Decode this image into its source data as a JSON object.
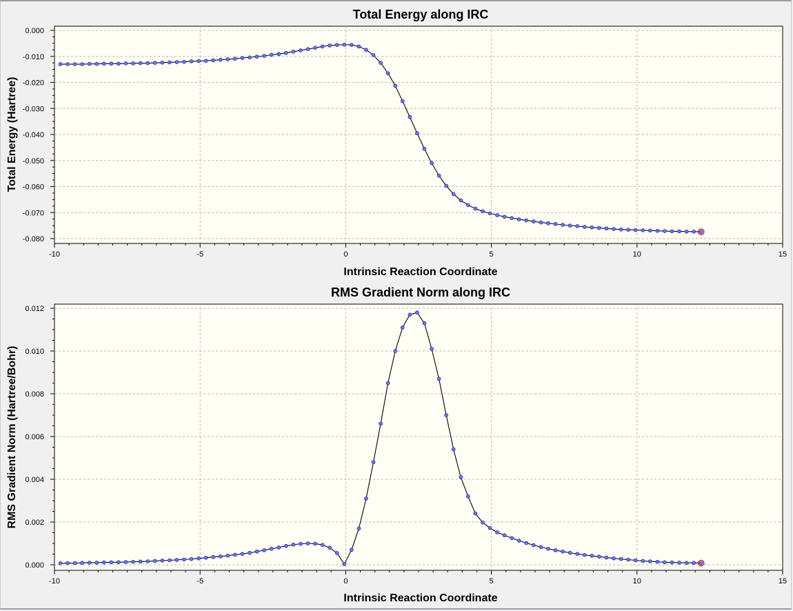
{
  "chart_data": [
    {
      "type": "line",
      "title": "Total Energy along IRC",
      "xlabel": "Intrinsic Reaction Coordinate",
      "ylabel": "Total Energy (Hartree)",
      "xlim": [
        -10,
        15
      ],
      "ylim": [
        -0.08,
        0.0
      ],
      "grid": true,
      "x_ticks": [
        "-10",
        "-5",
        "0",
        "5",
        "10",
        "15"
      ],
      "y_ticks": [
        "0.000",
        "-0.010",
        "-0.020",
        "-0.030",
        "-0.040",
        "-0.050",
        "-0.060",
        "-0.070",
        "-0.080"
      ],
      "x_tick_values": [
        -10,
        -5,
        0,
        5,
        10,
        15
      ],
      "y_tick_values": [
        0.0,
        -0.01,
        -0.02,
        -0.03,
        -0.04,
        -0.05,
        -0.06,
        -0.07,
        -0.08
      ],
      "highlight_last_point": true,
      "series": [
        {
          "x": [
            -9.8,
            -9.55,
            -9.3,
            -9.05,
            -8.8,
            -8.55,
            -8.3,
            -8.05,
            -7.8,
            -7.55,
            -7.3,
            -7.05,
            -6.8,
            -6.55,
            -6.3,
            -6.05,
            -5.8,
            -5.55,
            -5.3,
            -5.05,
            -4.8,
            -4.55,
            -4.3,
            -4.05,
            -3.8,
            -3.55,
            -3.3,
            -3.05,
            -2.8,
            -2.55,
            -2.3,
            -2.05,
            -1.8,
            -1.55,
            -1.3,
            -1.05,
            -0.8,
            -0.55,
            -0.3,
            -0.05,
            0.2,
            0.45,
            0.7,
            0.95,
            1.2,
            1.45,
            1.7,
            1.95,
            2.2,
            2.45,
            2.7,
            2.95,
            3.2,
            3.45,
            3.7,
            3.95,
            4.2,
            4.45,
            4.7,
            4.95,
            5.2,
            5.45,
            5.7,
            5.95,
            6.2,
            6.45,
            6.7,
            6.95,
            7.2,
            7.45,
            7.7,
            7.95,
            8.2,
            8.45,
            8.7,
            8.95,
            9.2,
            9.45,
            9.7,
            9.95,
            10.2,
            10.45,
            10.7,
            10.95,
            11.2,
            11.45,
            11.7,
            11.95,
            12.2
          ],
          "y": [
            -0.013,
            -0.013,
            -0.013,
            -0.013,
            -0.0129,
            -0.0129,
            -0.0128,
            -0.0128,
            -0.0128,
            -0.0127,
            -0.0127,
            -0.0126,
            -0.0126,
            -0.0125,
            -0.0124,
            -0.0123,
            -0.0122,
            -0.0121,
            -0.0119,
            -0.0118,
            -0.0117,
            -0.0115,
            -0.0113,
            -0.0111,
            -0.0109,
            -0.0106,
            -0.0104,
            -0.0101,
            -0.0098,
            -0.0094,
            -0.0091,
            -0.0087,
            -0.0082,
            -0.0077,
            -0.0072,
            -0.0067,
            -0.0062,
            -0.0058,
            -0.0056,
            -0.0055,
            -0.0056,
            -0.0062,
            -0.0075,
            -0.0095,
            -0.0125,
            -0.0165,
            -0.0213,
            -0.0272,
            -0.0333,
            -0.0395,
            -0.0455,
            -0.051,
            -0.0558,
            -0.0597,
            -0.0629,
            -0.0653,
            -0.0671,
            -0.0685,
            -0.0695,
            -0.0703,
            -0.071,
            -0.0716,
            -0.0721,
            -0.0726,
            -0.073,
            -0.0734,
            -0.0738,
            -0.0741,
            -0.0744,
            -0.0747,
            -0.075,
            -0.0752,
            -0.0755,
            -0.0757,
            -0.0759,
            -0.0761,
            -0.0763,
            -0.0765,
            -0.0766,
            -0.0767,
            -0.0768,
            -0.0769,
            -0.077,
            -0.0771,
            -0.0772,
            -0.0772,
            -0.0773,
            -0.0773,
            -0.0774
          ]
        }
      ]
    },
    {
      "type": "line",
      "title": "RMS Gradient Norm along IRC",
      "xlabel": "Intrinsic Reaction Coordinate",
      "ylabel": "RMS Gradient Norm (Hartree/Bohr)",
      "xlim": [
        -10,
        15
      ],
      "ylim": [
        0.0,
        0.012
      ],
      "grid": true,
      "x_ticks": [
        "-10",
        "-5",
        "0",
        "5",
        "10",
        "15"
      ],
      "y_ticks": [
        "0.012",
        "0.010",
        "0.008",
        "0.006",
        "0.004",
        "0.002",
        "0.000"
      ],
      "x_tick_values": [
        -10,
        -5,
        0,
        5,
        10,
        15
      ],
      "y_tick_values": [
        0.012,
        0.01,
        0.008,
        0.006,
        0.004,
        0.002,
        0.0
      ],
      "highlight_last_point": true,
      "series": [
        {
          "x": [
            -9.8,
            -9.55,
            -9.3,
            -9.05,
            -8.8,
            -8.55,
            -8.3,
            -8.05,
            -7.8,
            -7.55,
            -7.3,
            -7.05,
            -6.8,
            -6.55,
            -6.3,
            -6.05,
            -5.8,
            -5.55,
            -5.3,
            -5.05,
            -4.8,
            -4.55,
            -4.3,
            -4.05,
            -3.8,
            -3.55,
            -3.3,
            -3.05,
            -2.8,
            -2.55,
            -2.3,
            -2.05,
            -1.8,
            -1.55,
            -1.3,
            -1.05,
            -0.8,
            -0.55,
            -0.3,
            -0.05,
            0.2,
            0.45,
            0.7,
            0.95,
            1.2,
            1.45,
            1.7,
            1.95,
            2.2,
            2.45,
            2.7,
            2.95,
            3.2,
            3.45,
            3.7,
            3.95,
            4.2,
            4.45,
            4.7,
            4.95,
            5.2,
            5.45,
            5.7,
            5.95,
            6.2,
            6.45,
            6.7,
            6.95,
            7.2,
            7.45,
            7.7,
            7.95,
            8.2,
            8.45,
            8.7,
            8.95,
            9.2,
            9.45,
            9.7,
            9.95,
            10.2,
            10.45,
            10.7,
            10.95,
            11.2,
            11.45,
            11.7,
            11.95,
            12.2
          ],
          "y": [
            7e-05,
            8e-05,
            8e-05,
            9e-05,
            0.0001,
            0.0001,
            0.00011,
            0.00012,
            0.00012,
            0.00013,
            0.00014,
            0.00015,
            0.00016,
            0.00018,
            0.0002,
            0.00021,
            0.00023,
            0.00025,
            0.00027,
            0.0003,
            0.00033,
            0.00036,
            0.00039,
            0.00043,
            0.00047,
            0.00051,
            0.00056,
            0.00062,
            0.00068,
            0.00075,
            0.00081,
            0.00088,
            0.00094,
            0.00098,
            0.001,
            0.00099,
            0.00093,
            0.0008,
            0.00055,
            3e-05,
            0.0007,
            0.0017,
            0.0031,
            0.0048,
            0.0066,
            0.0085,
            0.01,
            0.0111,
            0.0117,
            0.0118,
            0.0113,
            0.0101,
            0.0087,
            0.007,
            0.0054,
            0.0041,
            0.0032,
            0.0024,
            0.00198,
            0.00172,
            0.00152,
            0.00138,
            0.00125,
            0.00113,
            0.00102,
            0.00092,
            0.00083,
            0.00075,
            0.00068,
            0.00062,
            0.00056,
            0.00051,
            0.00046,
            0.00042,
            0.00038,
            0.00034,
            0.0003,
            0.00027,
            0.00024,
            0.00021,
            0.00018,
            0.00016,
            0.00014,
            0.00012,
            0.00011,
            0.0001,
            9e-05,
            9e-05,
            8e-05
          ]
        }
      ]
    }
  ]
}
